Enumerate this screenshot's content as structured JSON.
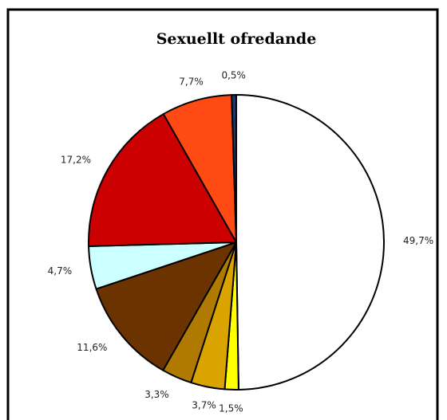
{
  "chart_data": {
    "type": "pie",
    "title": "Sexuellt ofredande",
    "values": [
      49.7,
      1.5,
      3.7,
      3.3,
      11.6,
      4.7,
      17.2,
      7.7,
      0.5
    ],
    "value_labels": [
      "49,7%",
      "1,5%",
      "3,7%",
      "3,3%",
      "11,6%",
      "4,7%",
      "17,2%",
      "7,7%",
      "0,5%"
    ],
    "colors": [
      "#ffffff",
      "#ffff00",
      "#d9a400",
      "#b07a00",
      "#6b3300",
      "#ccffff",
      "#cc0000",
      "#ff4a14",
      "#1f3864"
    ]
  }
}
